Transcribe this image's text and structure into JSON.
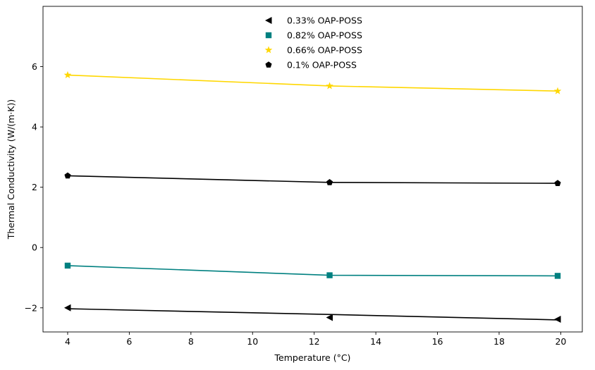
{
  "chart_data": {
    "type": "line",
    "title": "",
    "xlabel": "Temperature (°C)",
    "ylabel": "Thermal Conductivity (W/(m·K))",
    "xlim": [
      3.2,
      20.7
    ],
    "ylim": [
      -2.8,
      8.0
    ],
    "xticks": [
      4,
      6,
      8,
      10,
      12,
      14,
      16,
      18,
      20
    ],
    "yticks": [
      -2,
      0,
      2,
      4,
      6
    ],
    "xtick_labels": [
      "4",
      "6",
      "8",
      "10",
      "12",
      "14",
      "16",
      "18",
      "20"
    ],
    "ytick_labels": [
      "−2",
      "0",
      "2",
      "4",
      "6"
    ],
    "grid": false,
    "legend_position": "top-center",
    "series": [
      {
        "name": "0.33% OAP-POSS",
        "color": "#000000",
        "marker": "triangle-left",
        "markers": [
          {
            "x": 4.0,
            "y": -2.0
          },
          {
            "x": 12.5,
            "y": -2.32
          },
          {
            "x": 19.9,
            "y": -2.38
          }
        ],
        "line": [
          {
            "x": 4.0,
            "y": -2.03
          },
          {
            "x": 12.5,
            "y": -2.22
          },
          {
            "x": 19.9,
            "y": -2.4
          }
        ]
      },
      {
        "name": "0.82% OAP-POSS",
        "color": "#008080",
        "marker": "square",
        "markers": [
          {
            "x": 4.0,
            "y": -0.6
          },
          {
            "x": 12.5,
            "y": -0.92
          },
          {
            "x": 19.9,
            "y": -0.94
          }
        ],
        "line": [
          {
            "x": 4.0,
            "y": -0.6
          },
          {
            "x": 12.5,
            "y": -0.92
          },
          {
            "x": 19.9,
            "y": -0.94
          }
        ]
      },
      {
        "name": "0.66% OAP-POSS",
        "color": "#FFD700",
        "marker": "star",
        "markers": [
          {
            "x": 4.0,
            "y": 5.72
          },
          {
            "x": 12.5,
            "y": 5.36
          },
          {
            "x": 19.9,
            "y": 5.19
          }
        ],
        "line": [
          {
            "x": 4.0,
            "y": 5.72
          },
          {
            "x": 12.5,
            "y": 5.36
          },
          {
            "x": 19.9,
            "y": 5.19
          }
        ]
      },
      {
        "name": "0.1% OAP-POSS",
        "color": "#000000",
        "marker": "pentagon",
        "markers": [
          {
            "x": 4.0,
            "y": 2.38
          },
          {
            "x": 12.5,
            "y": 2.16
          },
          {
            "x": 19.9,
            "y": 2.13
          }
        ],
        "line": [
          {
            "x": 4.0,
            "y": 2.38
          },
          {
            "x": 12.5,
            "y": 2.16
          },
          {
            "x": 19.9,
            "y": 2.13
          }
        ]
      }
    ]
  }
}
